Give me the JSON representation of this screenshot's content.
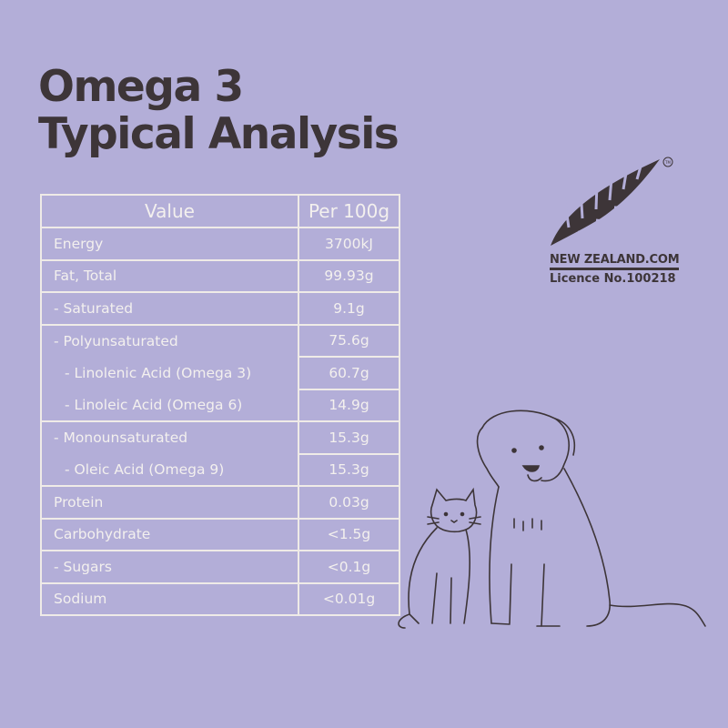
{
  "title": {
    "line1": "Omega 3",
    "line2": "Typical Analysis"
  },
  "table": {
    "headers": [
      "Value",
      "Per 100g"
    ],
    "rows": [
      {
        "label": "Energy",
        "value": "3700kJ"
      },
      {
        "label": "Fat, Total",
        "value": "99.93g"
      },
      {
        "label": "- Saturated",
        "value": "9.1g"
      },
      {
        "label": "- Polyunsaturated",
        "value": "75.6g"
      },
      {
        "label": "- Linolenic Acid (Omega 3)",
        "value": "60.7g"
      },
      {
        "label": "- Linoleic Acid (Omega 6)",
        "value": "14.9g"
      },
      {
        "label": "- Monounsaturated",
        "value": "15.3g"
      },
      {
        "label": "- Oleic Acid (Omega 9)",
        "value": "15.3g"
      },
      {
        "label": "Protein",
        "value": "0.03g"
      },
      {
        "label": "Carbohydrate",
        "value": "<1.5g"
      },
      {
        "label": "- Sugars",
        "value": "<0.1g"
      },
      {
        "label": "Sodium",
        "value": "<0.01g"
      }
    ]
  },
  "logo": {
    "brand": "NEW ZEALAND.COM",
    "licence": "Licence No.100218",
    "trademark": "TM",
    "icon": "silver-fern-icon"
  },
  "illustration": {
    "icon": "dog-and-cat-illustration"
  },
  "colors": {
    "background": "#b3aed8",
    "text": "#3d3538",
    "table_lines": "#efebe7"
  }
}
